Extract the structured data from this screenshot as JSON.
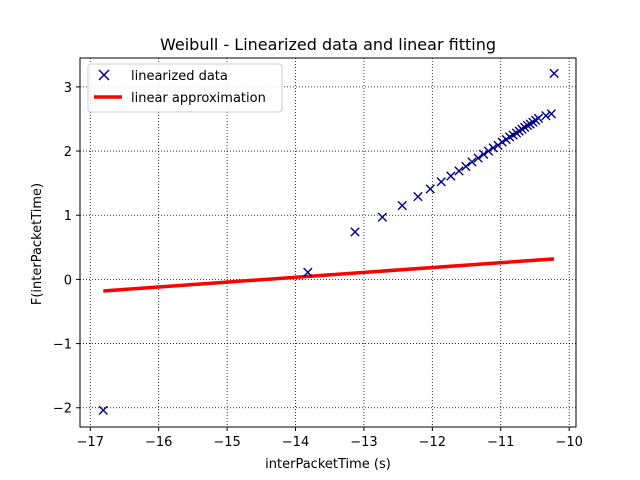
{
  "chart_data": {
    "type": "scatter",
    "title": "Weibull - Linearized data and linear fitting",
    "xlabel": "interPacketTime (s)",
    "ylabel": "F(interPacketTime)",
    "xlim": [
      -17.15,
      -9.9
    ],
    "ylim": [
      -2.3,
      3.45
    ],
    "xticks": [
      -17,
      -16,
      -15,
      -14,
      -13,
      -12,
      -11,
      -10
    ],
    "yticks": [
      -2,
      -1,
      0,
      1,
      2,
      3
    ],
    "grid": true,
    "legend_position": "top-left",
    "series": [
      {
        "name": "linearized data",
        "kind": "marker",
        "marker": "x",
        "color": "#000080",
        "x": [
          -16.81,
          -13.82,
          -13.13,
          -12.73,
          -12.44,
          -12.21,
          -12.03,
          -11.87,
          -11.73,
          -11.61,
          -11.51,
          -11.42,
          -11.33,
          -11.25,
          -11.18,
          -11.11,
          -11.04,
          -10.98,
          -10.92,
          -10.87,
          -10.82,
          -10.77,
          -10.73,
          -10.69,
          -10.65,
          -10.61,
          -10.57,
          -10.53,
          -10.49,
          -10.45,
          -10.34,
          -10.26,
          -10.22
        ],
        "y": [
          -2.04,
          0.11,
          0.74,
          0.97,
          1.15,
          1.29,
          1.41,
          1.52,
          1.61,
          1.69,
          1.76,
          1.83,
          1.89,
          1.95,
          2.0,
          2.05,
          2.09,
          2.14,
          2.18,
          2.22,
          2.25,
          2.28,
          2.31,
          2.34,
          2.37,
          2.4,
          2.42,
          2.45,
          2.48,
          2.51,
          2.55,
          2.58,
          3.21
        ]
      },
      {
        "name": "linear approximation",
        "kind": "line",
        "color": "#ff0000",
        "x": [
          -16.81,
          -10.22
        ],
        "y": [
          -0.18,
          0.32
        ]
      }
    ]
  }
}
